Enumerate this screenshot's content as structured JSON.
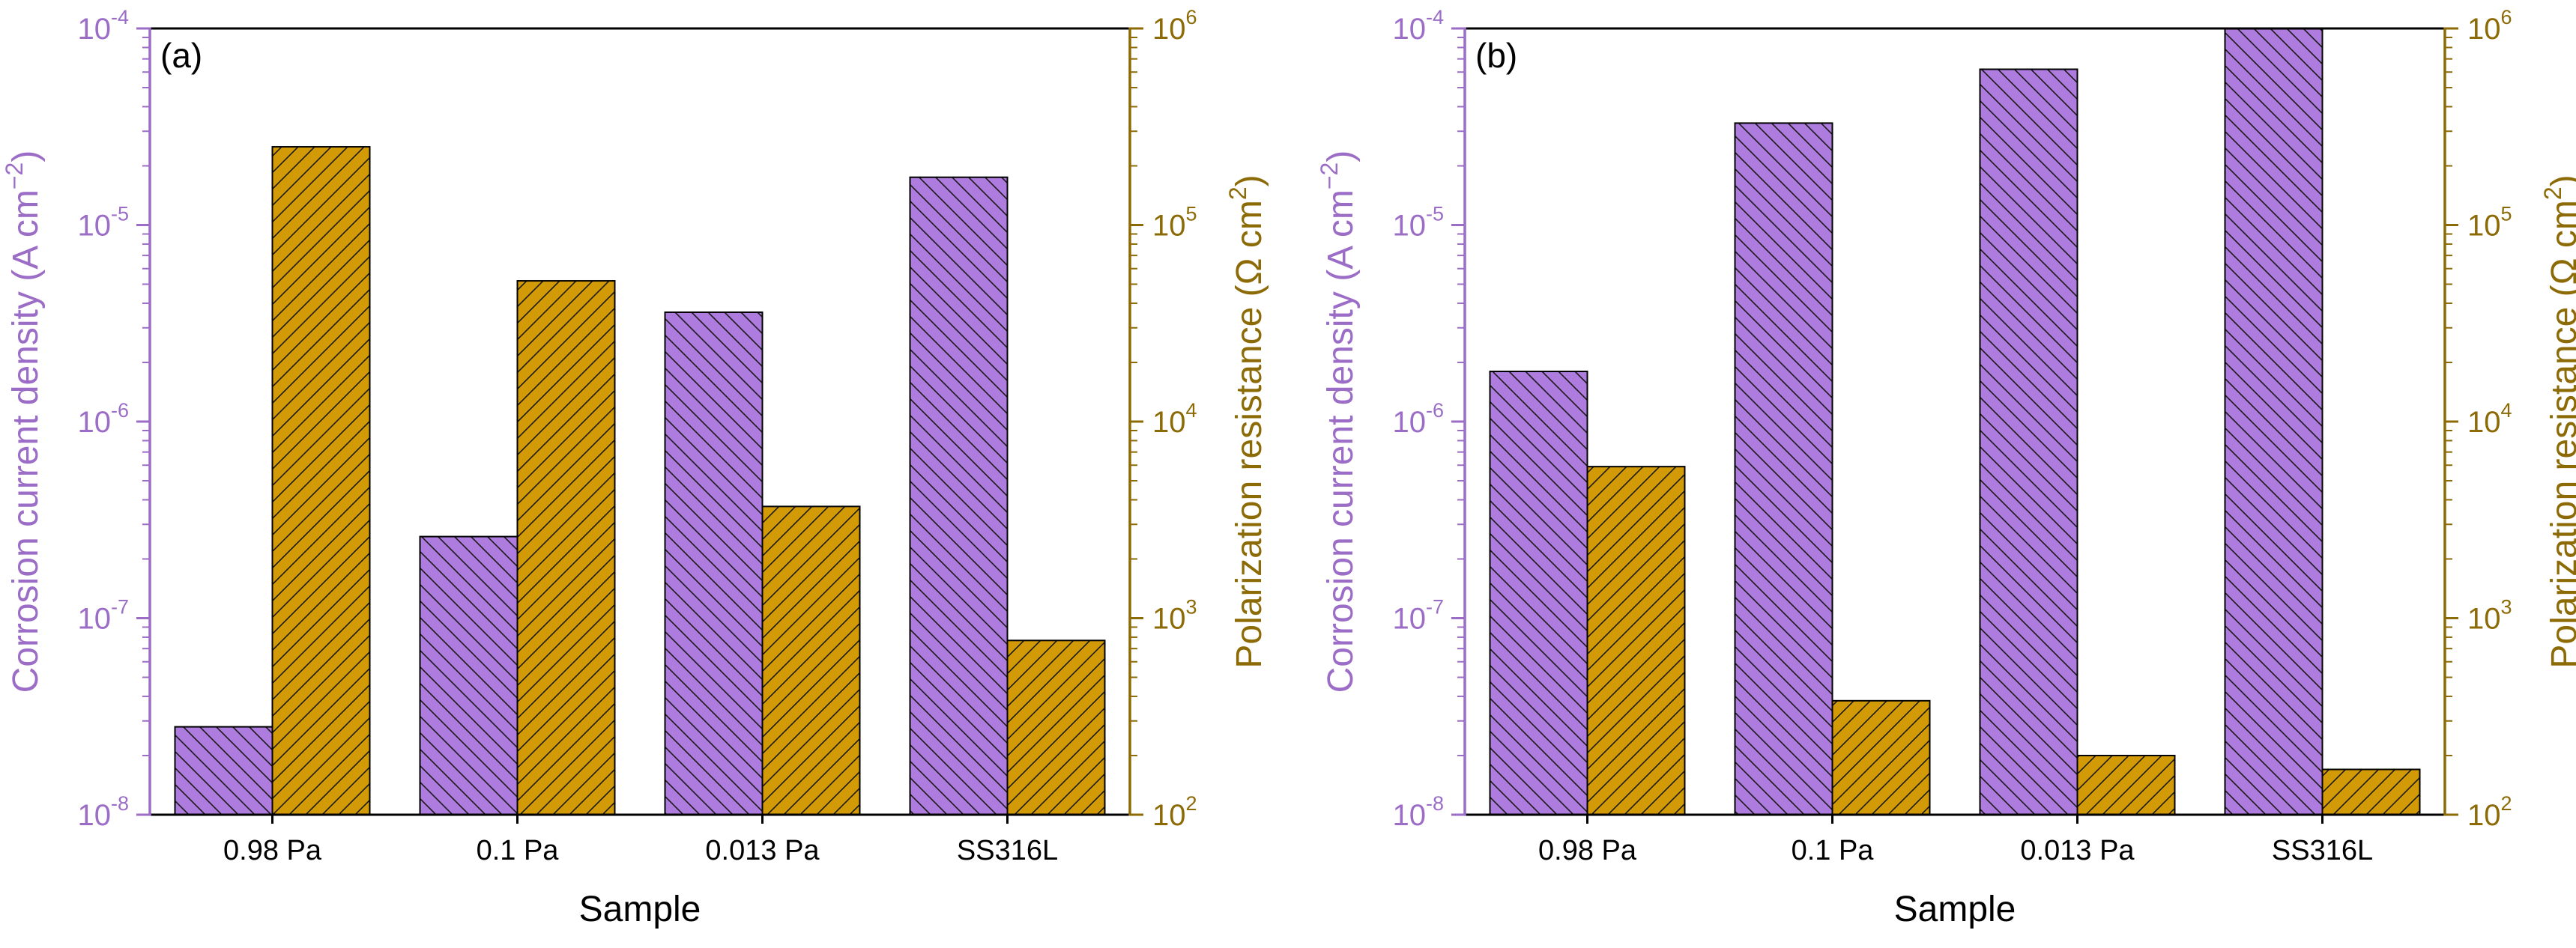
{
  "colors": {
    "left_axis": "#9B6DC6",
    "right_axis": "#8C6A06",
    "bar_left": "#AE7BDE",
    "bar_right": "#D39A08",
    "hatch": "#1a1a1a",
    "frame": "#000000"
  },
  "chart_data": [
    {
      "type": "bar",
      "panel_label": "(a)",
      "categories": [
        "0.98 Pa",
        "0.1 Pa",
        "0.013 Pa",
        "SS316L"
      ],
      "xlabel": "Sample",
      "y_left": {
        "label_main": "Corrosion current density (A cm",
        "label_sup": "−2",
        "label_tail": ")",
        "scale": "log",
        "ylim": [
          1e-08,
          0.0001
        ],
        "tick_exponents": [
          "-8",
          "-7",
          "-6",
          "-5",
          "-4"
        ],
        "tick_base": "10"
      },
      "y_right": {
        "label_main": "Polarization resistance (Ω cm",
        "label_sup": "2",
        "label_tail": ")",
        "scale": "log",
        "ylim": [
          100,
          1000000
        ],
        "tick_exponents": [
          "2",
          "3",
          "4",
          "5",
          "6"
        ],
        "tick_base": "10"
      },
      "series": [
        {
          "axis": "left",
          "values": [
            2.8e-08,
            2.6e-07,
            3.6e-06,
            1.75e-05
          ]
        },
        {
          "axis": "right",
          "values": [
            250000,
            52000,
            3700,
            770
          ]
        }
      ],
      "grid": false
    },
    {
      "type": "bar",
      "panel_label": "(b)",
      "categories": [
        "0.98 Pa",
        "0.1 Pa",
        "0.013 Pa",
        "SS316L"
      ],
      "xlabel": "Sample",
      "y_left": {
        "label_main": "Corrosion current density (A cm",
        "label_sup": "−2",
        "label_tail": ")",
        "scale": "log",
        "ylim": [
          1e-08,
          0.0001
        ],
        "tick_exponents": [
          "-8",
          "-7",
          "-6",
          "-5",
          "-4"
        ],
        "tick_base": "10"
      },
      "y_right": {
        "label_main": "Polarization resistance (Ω cm",
        "label_sup": "2",
        "label_tail": ")",
        "scale": "log",
        "ylim": [
          100,
          1000000
        ],
        "tick_exponents": [
          "2",
          "3",
          "4",
          "5",
          "6"
        ],
        "tick_base": "10"
      },
      "series": [
        {
          "axis": "left",
          "values": [
            1.8e-06,
            3.3e-05,
            6.2e-05,
            0.0001
          ]
        },
        {
          "axis": "right",
          "values": [
            5900,
            380,
            200,
            170
          ]
        }
      ],
      "grid": false
    }
  ]
}
